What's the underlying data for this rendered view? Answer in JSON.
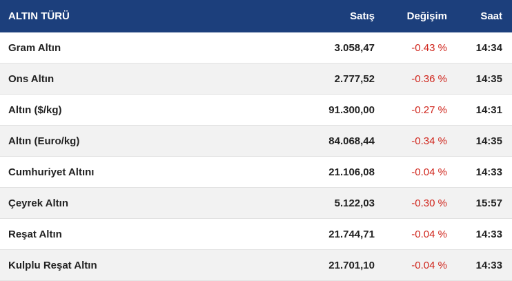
{
  "table": {
    "headers": {
      "name": "ALTIN TÜRÜ",
      "sale": "Satış",
      "change": "Değişim",
      "time": "Saat"
    },
    "rows": [
      {
        "name": "Gram Altın",
        "sale": "3.058,47",
        "change": "-0.43 %",
        "time": "14:34"
      },
      {
        "name": "Ons Altın",
        "sale": "2.777,52",
        "change": "-0.36 %",
        "time": "14:35"
      },
      {
        "name": "Altın ($/kg)",
        "sale": "91.300,00",
        "change": "-0.27 %",
        "time": "14:31"
      },
      {
        "name": "Altın (Euro/kg)",
        "sale": "84.068,44",
        "change": "-0.34 %",
        "time": "14:35"
      },
      {
        "name": "Cumhuriyet Altını",
        "sale": "21.106,08",
        "change": "-0.04 %",
        "time": "14:33"
      },
      {
        "name": "Çeyrek Altın",
        "sale": "5.122,03",
        "change": "-0.30 %",
        "time": "15:57"
      },
      {
        "name": "Reşat Altın",
        "sale": "21.744,71",
        "change": "-0.04 %",
        "time": "14:33"
      },
      {
        "name": "Kulplu Reşat Altın",
        "sale": "21.701,10",
        "change": "-0.04 %",
        "time": "14:33"
      }
    ]
  },
  "colors": {
    "header_bg": "#1c3f7c",
    "negative_change": "#d0261d",
    "stripe": "#f2f2f2"
  }
}
